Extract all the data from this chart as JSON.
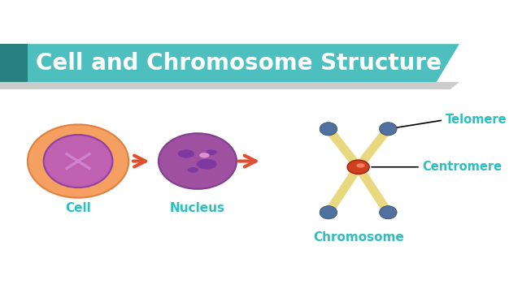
{
  "title": "Cell and Chromosome Structure",
  "title_color": "#ffffff",
  "title_bg_color": "#4dbfbf",
  "bg_color": "#ffffff",
  "label_color": "#2bbfbf",
  "annotation_color": "#2bbfbf",
  "cell_label": "Cell",
  "nucleus_label": "Nucleus",
  "chromosome_label": "Chromosome",
  "telomere_label": "Telomere",
  "centromere_label": "Centromere",
  "arrow_color": "#e05030",
  "cell_outer_color": "#f5a060",
  "cell_inner_color": "#c060b0",
  "nucleus_color": "#a050a0",
  "chromosome_arm_color": "#e8d880",
  "chromosome_tip_color": "#5070a0",
  "centromere_color": "#d04020",
  "centromere_inner_color": "#f08060"
}
